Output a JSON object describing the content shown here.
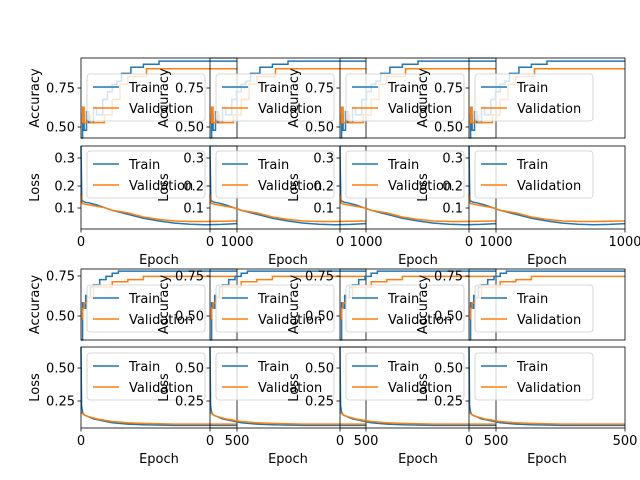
{
  "colors": {
    "train": "#1f77b4",
    "validation": "#ff7f0e"
  },
  "legend": {
    "placement": "center-right",
    "entries": [
      "Train",
      "Validation"
    ]
  },
  "chart_data": [
    {
      "group": "upper",
      "type": "line",
      "xlim": [
        0,
        1000
      ],
      "xticks": [
        0,
        1000
      ],
      "xlabel": "Epoch",
      "panels": [
        {
          "kind": "accuracy",
          "ylabel": "Accuracy",
          "ylim": [
            0.45,
            0.97
          ],
          "yticks": [
            "0.50",
            "0.75"
          ],
          "series": [
            {
              "name": "Train",
              "x": [
                0,
                10,
                20,
                35,
                50,
                80,
                100,
                140,
                170,
                200,
                230,
                260,
                290,
                320,
                360,
                400,
                450,
                500,
                1000
              ],
              "y": [
                0.45,
                0.6,
                0.5,
                0.62,
                0.55,
                0.65,
                0.6,
                0.7,
                0.75,
                0.8,
                0.82,
                0.87,
                0.87,
                0.91,
                0.91,
                0.93,
                0.93,
                0.95,
                0.95
              ]
            },
            {
              "name": "Validation",
              "x": [
                0,
                10,
                20,
                40,
                60,
                100,
                150,
                200,
                250,
                300,
                400,
                420,
                1000
              ],
              "y": [
                0.55,
                0.65,
                0.55,
                0.6,
                0.55,
                0.55,
                0.6,
                0.7,
                0.8,
                0.85,
                0.85,
                0.9,
                0.9
              ]
            }
          ]
        },
        {
          "kind": "loss",
          "ylabel": "Loss",
          "ylim": [
            0.03,
            0.34
          ],
          "yticks": [
            "0.1",
            "0.2",
            "0.3"
          ],
          "series": [
            {
              "name": "Train",
              "x": [
                0,
                5,
                10,
                25,
                50,
                100,
                150,
                200,
                300,
                400,
                500,
                600,
                700,
                800,
                900,
                1000
              ],
              "y": [
                0.34,
                0.14,
                0.135,
                0.13,
                0.128,
                0.12,
                0.11,
                0.1,
                0.085,
                0.07,
                0.06,
                0.052,
                0.048,
                0.046,
                0.047,
                0.05
              ]
            },
            {
              "name": "Validation",
              "x": [
                0,
                5,
                10,
                50,
                100,
                150,
                200,
                300,
                400,
                500,
                600,
                700,
                800,
                900,
                1000
              ],
              "y": [
                0.16,
                0.13,
                0.125,
                0.12,
                0.115,
                0.11,
                0.1,
                0.09,
                0.075,
                0.066,
                0.06,
                0.058,
                0.058,
                0.059,
                0.06
              ]
            }
          ]
        }
      ]
    },
    {
      "group": "lower",
      "type": "line",
      "xlim": [
        0,
        500
      ],
      "xticks": [
        0,
        500
      ],
      "xlabel": "Epoch",
      "panels": [
        {
          "kind": "accuracy",
          "ylabel": "Accuracy",
          "ylim": [
            0.3,
            0.97
          ],
          "yticks": [
            "0.50",
            "0.75"
          ],
          "series": [
            {
              "name": "Train",
              "x": [
                0,
                5,
                10,
                15,
                20,
                30,
                40,
                60,
                80,
                100,
                120,
                500
              ],
              "y": [
                0.3,
                0.65,
                0.6,
                0.72,
                0.7,
                0.8,
                0.82,
                0.87,
                0.9,
                0.93,
                0.95,
                0.95
              ]
            },
            {
              "name": "Validation",
              "x": [
                0,
                5,
                10,
                20,
                40,
                60,
                100,
                150,
                200,
                500
              ],
              "y": [
                0.5,
                0.6,
                0.65,
                0.7,
                0.8,
                0.8,
                0.85,
                0.87,
                0.9,
                0.9
              ]
            }
          ]
        },
        {
          "kind": "loss",
          "ylabel": "Loss",
          "ylim": [
            0.03,
            0.65
          ],
          "yticks": [
            "0.25",
            "0.50"
          ],
          "series": [
            {
              "name": "Train",
              "x": [
                0,
                2,
                5,
                10,
                20,
                40,
                60,
                80,
                100,
                150,
                200,
                300,
                400,
                500
              ],
              "y": [
                0.65,
                0.2,
                0.15,
                0.13,
                0.12,
                0.1,
                0.09,
                0.08,
                0.07,
                0.06,
                0.055,
                0.05,
                0.05,
                0.05
              ]
            },
            {
              "name": "Validation",
              "x": [
                0,
                5,
                10,
                20,
                50,
                100,
                150,
                200,
                300,
                400,
                500
              ],
              "y": [
                0.15,
                0.14,
                0.13,
                0.12,
                0.1,
                0.08,
                0.07,
                0.065,
                0.06,
                0.06,
                0.06
              ]
            }
          ]
        }
      ]
    }
  ]
}
